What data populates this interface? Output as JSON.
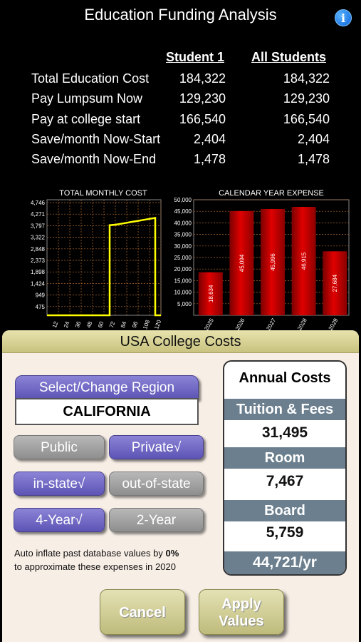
{
  "header": {
    "title": "Education Funding Analysis",
    "info_glyph": "i"
  },
  "summary": {
    "col1": "Student 1",
    "col2": "All Students",
    "rows": [
      {
        "label": "Total Education Cost",
        "v1": "184,322",
        "v2": "184,322"
      },
      {
        "label": "Pay Lumpsum Now",
        "v1": "129,230",
        "v2": "129,230"
      },
      {
        "label": "Pay at college start",
        "v1": "166,540",
        "v2": "166,540"
      },
      {
        "label": "Save/month Now-Start",
        "v1": "2,404",
        "v2": "2,404"
      },
      {
        "label": "Save/month Now-End",
        "v1": "1,478",
        "v2": "1,478"
      }
    ]
  },
  "chart_data": [
    {
      "type": "line",
      "title": "TOTAL MONTHLY COST",
      "y_ticks": [
        "4,746",
        "4,271",
        "3,797",
        "3,322",
        "2,848",
        "2,373",
        "1,898",
        "1,424",
        "949",
        "475"
      ],
      "x_ticks": [
        "12",
        "24",
        "36",
        "48",
        "60",
        "72",
        "84",
        "96",
        "108",
        "120"
      ],
      "xlim": [
        0,
        120
      ],
      "ylim": [
        0,
        4746
      ],
      "grid": true,
      "series": [
        {
          "color": "#ffff00",
          "x": [
            0,
            66,
            66,
            72,
            78,
            84,
            90,
            96,
            102,
            108,
            114,
            114,
            120
          ],
          "y": [
            0,
            0,
            3700,
            3720,
            3760,
            3800,
            3840,
            3880,
            3920,
            3960,
            4000,
            0,
            0
          ]
        }
      ]
    },
    {
      "type": "bar",
      "title": "CALENDAR YEAR EXPENSE",
      "categories": [
        "2025",
        "2026",
        "2027",
        "2028",
        "2029"
      ],
      "values": [
        18634,
        45094,
        45996,
        46915,
        27684
      ],
      "value_labels": [
        "18,634",
        "45,094",
        "45,996",
        "46,915",
        "27,684"
      ],
      "y_ticks": [
        "50,000",
        "45,000",
        "40,000",
        "35,000",
        "30,000",
        "25,000",
        "20,000",
        "15,000",
        "10,000",
        "5,000"
      ],
      "ylim": [
        0,
        50000
      ],
      "grid": true,
      "bar_color": "#e00000"
    }
  ],
  "panel": {
    "title": "USA College Costs",
    "select_region_label": "Select/Change Region",
    "region_value": "CALIFORNIA",
    "public_label": "Public",
    "private_label": "Private√",
    "instate_label": "in-state√",
    "outstate_label": "out-of-state",
    "fouryear_label": "4-Year√",
    "twoyear_label": "2-Year",
    "note_line1_prefix": "Auto inflate past database values by",
    "note_pct": "0%",
    "note_line2": "to approximate these expenses in 2020"
  },
  "costs": {
    "title": "Annual Costs",
    "tuition_label": "Tuition & Fees",
    "tuition_value": "31,495",
    "room_label": "Room",
    "room_value": "7,467",
    "board_label": "Board",
    "board_value": "5,759",
    "total": "44,721/yr"
  },
  "buttons": {
    "cancel": "Cancel",
    "apply_line1": "Apply",
    "apply_line2": "Values"
  }
}
